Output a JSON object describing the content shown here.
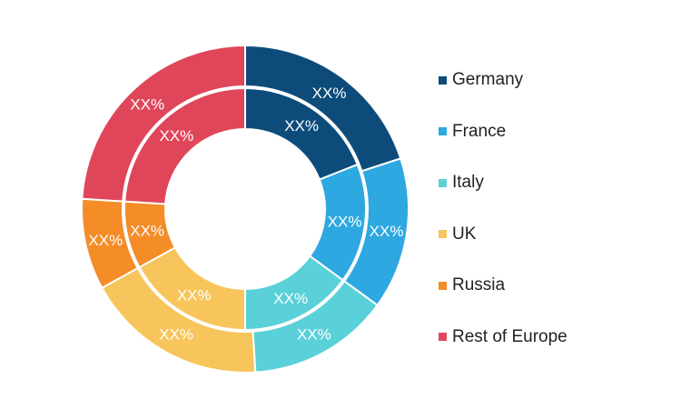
{
  "chart_data": {
    "type": "donut",
    "legend_position": "right",
    "categories": [
      "Germany",
      "France",
      "Italy",
      "UK",
      "Russia",
      "Rest of Europe"
    ],
    "colors": [
      "#0d4c7a",
      "#2ea8e0",
      "#5ad0d9",
      "#f7c55b",
      "#f48c28",
      "#e0465a"
    ],
    "series": [
      {
        "values": [
          20,
          15,
          14,
          18,
          9,
          24
        ],
        "labels": [
          "XX%",
          "XX%",
          "XX%",
          "XX%",
          "XX%",
          "XX%"
        ]
      },
      {
        "values": [
          19,
          16,
          15,
          17,
          9,
          24
        ],
        "labels": [
          "XX%",
          "XX%",
          "XX%",
          "XX%",
          "XX%",
          "XX%"
        ]
      }
    ]
  }
}
